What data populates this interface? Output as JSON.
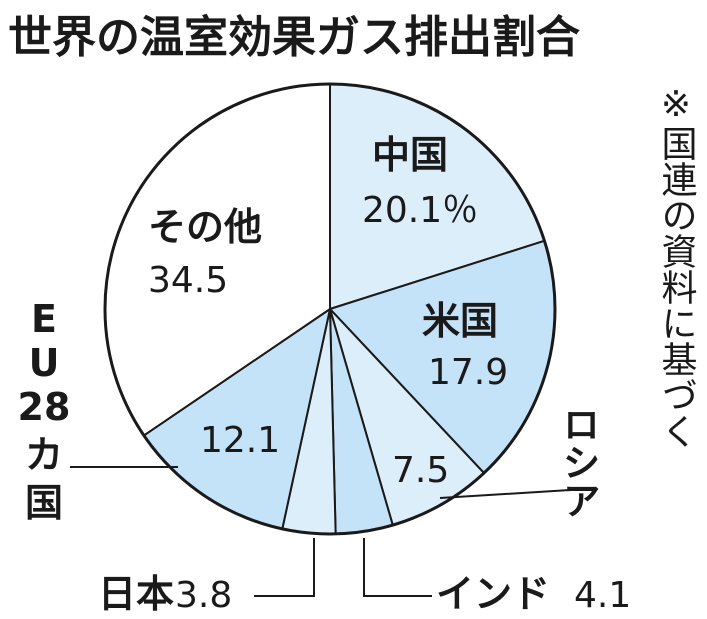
{
  "chart_data": {
    "type": "pie",
    "title": "世界の温室効果ガス排出割合",
    "note": "※国連の資料に基づく",
    "unit": "%",
    "slices": [
      {
        "label": "中国",
        "value": 20.1,
        "value_text": "20.1％",
        "color": "#ddeefb"
      },
      {
        "label": "米国",
        "value": 17.9,
        "value_text": "17.9",
        "color": "#c4e2f8"
      },
      {
        "label": "ロシア",
        "value": 7.5,
        "value_text": "7.5",
        "color": "#ddeefb"
      },
      {
        "label": "インド",
        "value": 4.1,
        "value_text": "4.1",
        "color": "#c4e2f8"
      },
      {
        "label": "日本",
        "value": 3.8,
        "value_text": "3.8",
        "color": "#ddeefb"
      },
      {
        "label": "EU28カ国",
        "label_chars": [
          "E",
          "U",
          "28",
          "カ",
          "国"
        ],
        "value": 12.1,
        "value_text": "12.1",
        "color": "#c4e2f8"
      },
      {
        "label": "その他",
        "value": 34.5,
        "value_text": "34.5",
        "color": "#ffffff"
      }
    ]
  }
}
